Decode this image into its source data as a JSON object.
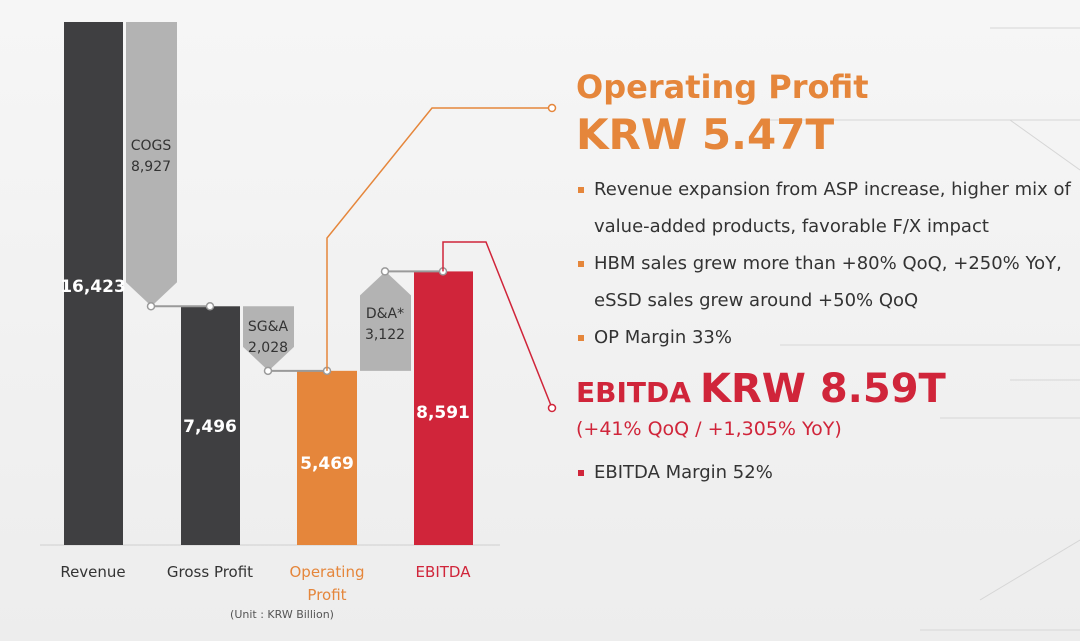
{
  "colors": {
    "dark_bar": "#3f3f41",
    "decrease_bar": "#b3b3b3",
    "operating_accent": "#e5863b",
    "ebitda_accent": "#d0253a",
    "connector": "#9a9a9a"
  },
  "chart_data": {
    "type": "waterfall",
    "unit_note": "(Unit : KRW Billion)",
    "categories": [
      "Revenue",
      "Gross Profit",
      "Operating Profit",
      "EBITDA"
    ],
    "bars": [
      {
        "category": "Revenue",
        "value": 16423,
        "label": "16,423",
        "color": "dark"
      },
      {
        "category": "Gross Profit",
        "value": 7496,
        "label": "7,496",
        "color": "dark"
      },
      {
        "category": "Operating Profit",
        "value": 5469,
        "label": "5,469",
        "color": "orange"
      },
      {
        "category": "EBITDA",
        "value": 8591,
        "label": "8,591",
        "color": "red"
      }
    ],
    "steps": [
      {
        "name": "COGS",
        "value": 8927,
        "label": "8,927",
        "direction": "down",
        "from": 16423,
        "to": 7496
      },
      {
        "name": "SG&A",
        "value": 2028,
        "label": "2,028",
        "direction": "down",
        "from": 7496,
        "to": 5469
      },
      {
        "name": "D&A*",
        "value": 3122,
        "label": "3,122",
        "direction": "up",
        "from": 5469,
        "to": 8591
      }
    ],
    "ylim": [
      0,
      16423
    ]
  },
  "operating": {
    "title": "Operating Profit",
    "value": "KRW 5.47T",
    "bullets": [
      "Revenue expansion from ASP increase, higher mix of value-added products, favorable F/X impact",
      "HBM sales grew more than +80% QoQ, +250% YoY, eSSD sales grew around +50% QoQ",
      "OP Margin 33%"
    ]
  },
  "ebitda": {
    "label": "EBITDA",
    "value": "KRW 8.59T",
    "change": "(+41% QoQ / +1,305% YoY)",
    "bullets": [
      "EBITDA Margin 52%"
    ]
  }
}
